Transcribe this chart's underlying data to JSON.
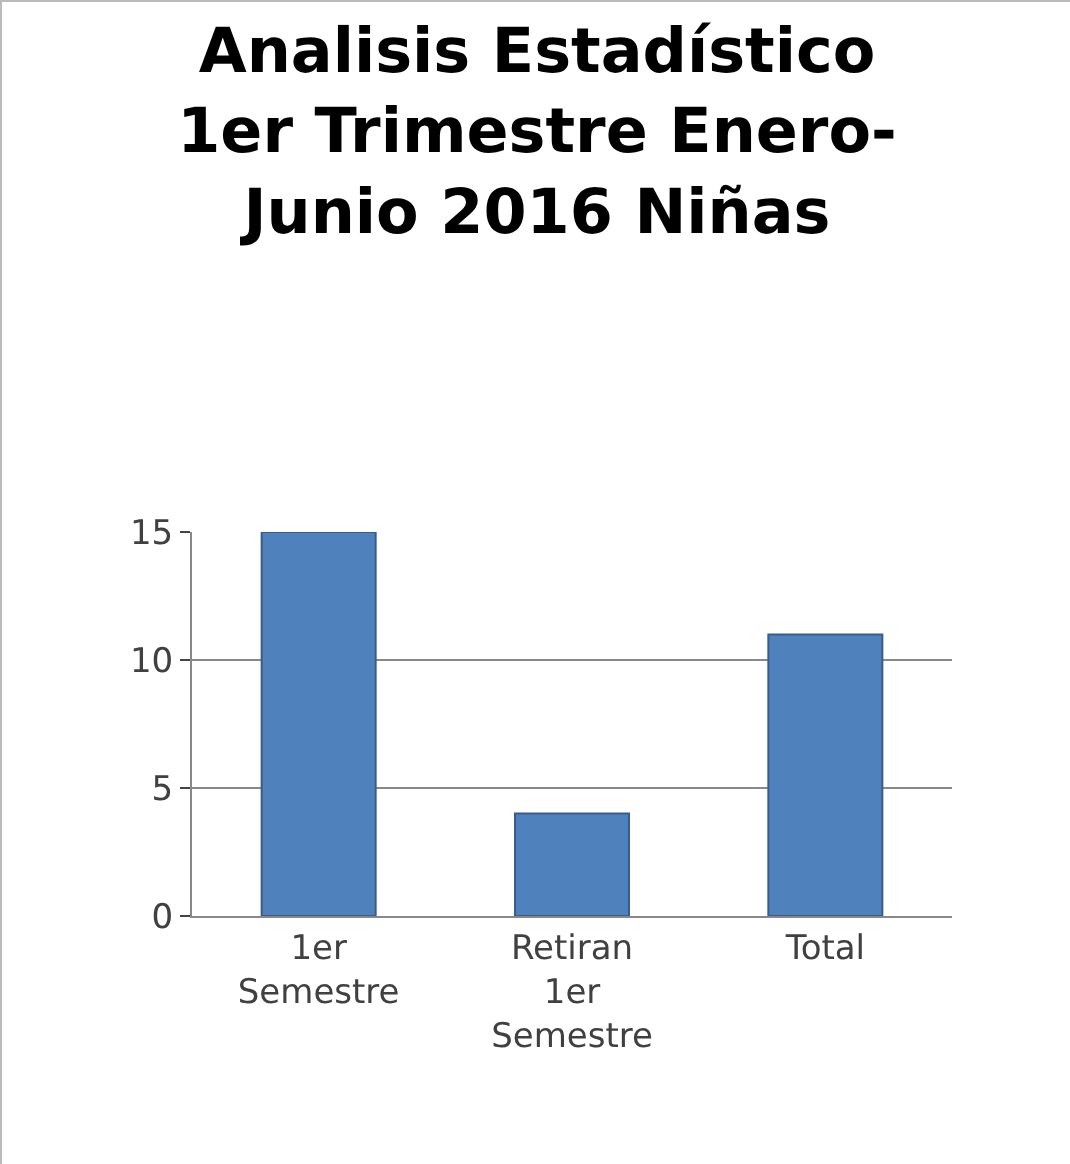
{
  "chart_data": {
    "type": "bar",
    "title": "Analisis Estadístico\n1er Trimestre Enero-\nJunio 2016 Niñas",
    "categories": [
      "1er\nSemestre",
      "Retiran\n1er\nSemestre",
      "Total"
    ],
    "values": [
      15,
      4,
      11
    ],
    "color": "#4f81bd",
    "ylim": [
      0,
      15
    ],
    "yticks": [
      0,
      5,
      10,
      15
    ],
    "grid": "y"
  }
}
